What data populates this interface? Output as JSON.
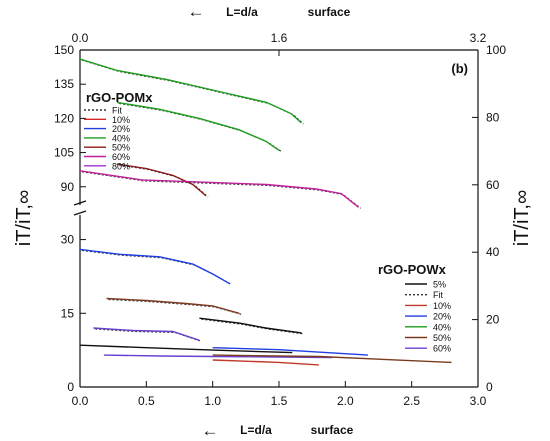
{
  "chart_data": {
    "type": "line",
    "panel_label": "(b)",
    "axes": {
      "bottom": {
        "label_arrow": "←",
        "label": "L=d/a",
        "label_extra": "surface",
        "range": [
          0.0,
          3.0
        ],
        "ticks": [
          "0.0",
          "0.5",
          "1.0",
          "1.5",
          "2.0",
          "2.5",
          "3.0"
        ]
      },
      "top": {
        "label_arrow": "←",
        "label": "L=d/a",
        "label_extra": "surface",
        "range": [
          0.0,
          3.2
        ],
        "ticks": [
          "0.0",
          "1.6",
          "3.2"
        ]
      },
      "left": {
        "label": "iT/iT,∞",
        "broken": true,
        "upper_range": [
          82,
          150
        ],
        "upper_ticks": [
          "90",
          "105",
          "120",
          "135",
          "150"
        ],
        "lower_range": [
          0,
          35
        ],
        "lower_ticks": [
          "0",
          "15",
          "30"
        ]
      },
      "right": {
        "label": "iT/iT,∞",
        "range": [
          0,
          100
        ],
        "ticks": [
          "0",
          "20",
          "40",
          "60",
          "80",
          "100"
        ]
      }
    },
    "legend_pom": {
      "title": "rGO-POMx",
      "entries": [
        {
          "label": "Fit",
          "color": "#333333",
          "style": "dotted"
        },
        {
          "label": "10%",
          "color": "#d62728",
          "style": "solid"
        },
        {
          "label": "20%",
          "color": "#1f3fe0",
          "style": "solid"
        },
        {
          "label": "40%",
          "color": "#1e9e1e",
          "style": "solid"
        },
        {
          "label": "50%",
          "color": "#8b1a1a",
          "style": "solid"
        },
        {
          "label": "60%",
          "color": "#c0209a",
          "style": "solid"
        },
        {
          "label": "80%",
          "color": "#9b30d9",
          "style": "solid"
        }
      ]
    },
    "legend_pow": {
      "title": "rGO-POWx",
      "entries": [
        {
          "label": "5%",
          "color": "#111111",
          "style": "solid"
        },
        {
          "label": "Fit",
          "color": "#333333",
          "style": "dotted"
        },
        {
          "label": "10%",
          "color": "#c0392b",
          "style": "solid"
        },
        {
          "label": "20%",
          "color": "#1f3fe0",
          "style": "solid"
        },
        {
          "label": "40%",
          "color": "#1e9e1e",
          "style": "solid"
        },
        {
          "label": "50%",
          "color": "#7a3b1e",
          "style": "solid"
        },
        {
          "label": "60%",
          "color": "#6a3fd0",
          "style": "solid"
        }
      ]
    },
    "series": [
      {
        "group": "POM",
        "color": "#1e9e1e",
        "x_axis": "top",
        "y_axis": "left-upper",
        "fit": true,
        "x": [
          0.0,
          0.3,
          0.7,
          1.1,
          1.5,
          1.7,
          1.78
        ],
        "y": [
          146,
          141,
          137,
          132,
          127,
          122,
          118
        ]
      },
      {
        "group": "POM",
        "color": "#1e9e1e",
        "x_axis": "bottom",
        "y_axis": "left-upper",
        "fit": true,
        "x": [
          0.28,
          0.6,
          0.9,
          1.2,
          1.4,
          1.5
        ],
        "y": [
          127,
          124,
          120,
          115,
          110,
          106
        ]
      },
      {
        "group": "POM",
        "color": "#8b1a1a",
        "x_axis": "bottom",
        "y_axis": "left-upper",
        "fit": true,
        "x": [
          0.28,
          0.5,
          0.7,
          0.85,
          0.95
        ],
        "y": [
          100,
          98,
          95,
          91,
          86
        ]
      },
      {
        "group": "POM",
        "color": "#c0209a",
        "x_axis": "top",
        "y_axis": "left-upper",
        "fit": true,
        "x": [
          0.0,
          0.5,
          1.0,
          1.5,
          1.9,
          2.1,
          2.24
        ],
        "y": [
          97,
          93,
          92,
          91,
          89,
          87,
          81
        ]
      },
      {
        "group": "POW",
        "color": "#1f3fe0",
        "x_axis": "bottom",
        "y_axis": "left-lower",
        "fit": true,
        "x": [
          0.0,
          0.3,
          0.6,
          0.85,
          1.0,
          1.13
        ],
        "y": [
          28,
          27,
          26.5,
          25,
          23,
          21
        ]
      },
      {
        "group": "POW",
        "color": "#7a3b1e",
        "x_axis": "bottom",
        "y_axis": "left-lower",
        "fit": true,
        "x": [
          0.2,
          0.5,
          0.8,
          1.0,
          1.2
        ],
        "y": [
          18,
          17.6,
          17,
          16.5,
          15
        ]
      },
      {
        "group": "POW",
        "color": "#111111",
        "x_axis": "bottom",
        "y_axis": "left-lower",
        "fit": true,
        "x": [
          0.9,
          1.2,
          1.4,
          1.67
        ],
        "y": [
          14,
          13,
          12,
          11
        ]
      },
      {
        "group": "POW",
        "color": "#6a3fd0",
        "x_axis": "bottom",
        "y_axis": "left-lower",
        "fit": true,
        "x": [
          0.1,
          0.4,
          0.7,
          0.9
        ],
        "y": [
          12,
          11.5,
          11.3,
          9.5
        ]
      },
      {
        "group": "POW",
        "color": "#111111",
        "x_axis": "bottom",
        "y_axis": "left-lower",
        "fit": false,
        "x": [
          0.0,
          0.5,
          1.0,
          1.6
        ],
        "y": [
          8.5,
          8.0,
          7.5,
          7.0
        ]
      },
      {
        "group": "POW",
        "color": "#1f3fe0",
        "x_axis": "bottom",
        "y_axis": "left-lower",
        "fit": false,
        "x": [
          1.0,
          1.5,
          2.17
        ],
        "y": [
          8.0,
          7.6,
          6.5
        ]
      },
      {
        "group": "POW",
        "color": "#6a3fd0",
        "x_axis": "bottom",
        "y_axis": "left-lower",
        "fit": false,
        "x": [
          0.18,
          0.6,
          1.0,
          1.9
        ],
        "y": [
          6.5,
          6.3,
          6.2,
          6.0
        ]
      },
      {
        "group": "POW",
        "color": "#7a3b1e",
        "x_axis": "bottom",
        "y_axis": "left-lower",
        "fit": false,
        "x": [
          1.0,
          1.8,
          2.8
        ],
        "y": [
          6.5,
          6.2,
          5.0
        ]
      },
      {
        "group": "POW",
        "color": "#c0392b",
        "x_axis": "bottom",
        "y_axis": "left-lower",
        "fit": false,
        "x": [
          1.0,
          1.5,
          1.8
        ],
        "y": [
          5.5,
          5.0,
          4.5
        ]
      }
    ]
  }
}
